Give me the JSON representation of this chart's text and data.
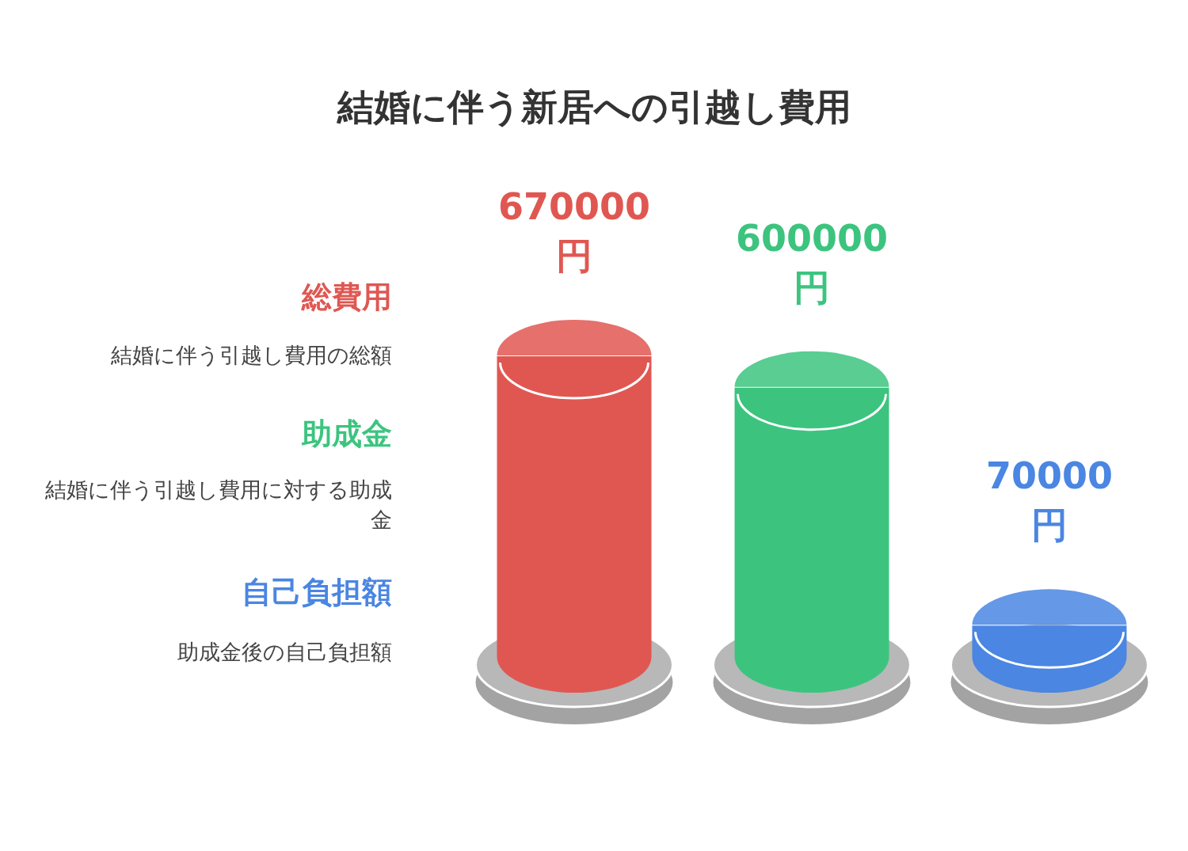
{
  "chart_data": {
    "type": "bar",
    "title": "結婚に伴う新居への引越し費用",
    "categories": [
      null,
      null,
      null
    ],
    "values": [
      670000,
      600000,
      70000
    ],
    "colors": [
      "#e05752",
      "#3cc47f",
      "#4a86e2"
    ],
    "value_labels": [
      "670000 円",
      "600000 円",
      "70000 円"
    ],
    "annotations": [
      "総費用",
      "結婚に伴う引越し費用の総額",
      "助成金",
      "結婚に伴う引越し費用に対する助成金",
      "自己負担額",
      "助成金後の自己負担額"
    ]
  }
}
